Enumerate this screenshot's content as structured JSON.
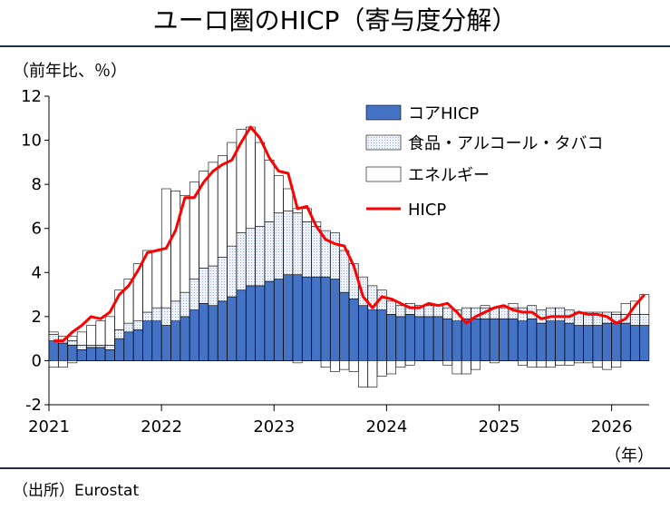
{
  "title": "ユーロ圏のHICP（寄与度分解）",
  "source": "（出所）Eurostat",
  "chart_data": {
    "type": "bar",
    "stacked": true,
    "y_unit_label": "（前年比、％）",
    "x_unit_label": "（年）",
    "ylim": [
      -2,
      12
    ],
    "y_ticks": [
      "-2",
      "0",
      "2",
      "4",
      "6",
      "8",
      "10",
      "12"
    ],
    "x_ticks": [
      "2021",
      "2022",
      "2023",
      "2024",
      "2025",
      "2026"
    ],
    "months": [
      "2021-01",
      "2021-02",
      "2021-03",
      "2021-04",
      "2021-05",
      "2021-06",
      "2021-07",
      "2021-08",
      "2021-09",
      "2021-10",
      "2021-11",
      "2021-12",
      "2022-01",
      "2022-02",
      "2022-03",
      "2022-04",
      "2022-05",
      "2022-06",
      "2022-07",
      "2022-08",
      "2022-09",
      "2022-10",
      "2022-11",
      "2022-12",
      "2023-01",
      "2023-02",
      "2023-03",
      "2023-04",
      "2023-05",
      "2023-06",
      "2023-07",
      "2023-08",
      "2023-09",
      "2023-10",
      "2023-11",
      "2023-12",
      "2024-01",
      "2024-02",
      "2024-03",
      "2024-04",
      "2024-05",
      "2024-06",
      "2024-07",
      "2024-08",
      "2024-09",
      "2024-10",
      "2024-11",
      "2024-12",
      "2025-01",
      "2025-02",
      "2025-03",
      "2025-04",
      "2025-05",
      "2025-06",
      "2025-07",
      "2025-08",
      "2025-09",
      "2025-10",
      "2025-11",
      "2025-12",
      "2026-01",
      "2026-02",
      "2026-03",
      "2026-04"
    ],
    "legend_position": "top-right",
    "series": [
      {
        "name": "コアHICP",
        "kind": "bar",
        "color": "#4472c4",
        "values": [
          0.9,
          0.8,
          0.7,
          0.5,
          0.6,
          0.6,
          0.5,
          1.0,
          1.3,
          1.4,
          1.8,
          1.8,
          1.6,
          1.8,
          2.0,
          2.3,
          2.6,
          2.5,
          2.7,
          2.9,
          3.2,
          3.4,
          3.4,
          3.6,
          3.7,
          3.9,
          3.9,
          3.8,
          3.8,
          3.8,
          3.7,
          3.1,
          2.8,
          2.5,
          2.3,
          2.3,
          2.1,
          2.0,
          2.1,
          2.0,
          2.0,
          2.0,
          1.9,
          1.8,
          1.9,
          1.9,
          1.9,
          1.9,
          1.9,
          1.9,
          1.8,
          1.9,
          1.7,
          1.8,
          1.8,
          1.7,
          1.6,
          1.6,
          1.6,
          1.7,
          1.7,
          1.7,
          1.6,
          1.6
        ]
      },
      {
        "name": "食品・アルコール・タバコ",
        "kind": "bar",
        "color": "#dce6f4",
        "values": [
          0.3,
          0.3,
          0.2,
          0.2,
          0.1,
          0.1,
          0.2,
          0.4,
          0.4,
          0.4,
          0.4,
          0.6,
          0.8,
          0.9,
          1.1,
          1.4,
          1.6,
          1.8,
          2.0,
          2.3,
          2.6,
          2.6,
          2.7,
          2.7,
          3.0,
          2.9,
          2.8,
          2.5,
          2.3,
          2.1,
          2.1,
          1.9,
          1.6,
          1.3,
          1.1,
          0.9,
          0.6,
          0.5,
          0.5,
          0.5,
          0.5,
          0.5,
          0.5,
          0.5,
          0.5,
          0.5,
          0.5,
          0.5,
          0.5,
          0.5,
          0.6,
          0.6,
          0.6,
          0.6,
          0.6,
          0.6,
          0.6,
          0.6,
          0.6,
          0.5,
          0.4,
          0.4,
          0.5,
          0.5
        ]
      },
      {
        "name": "エネルギー",
        "kind": "bar",
        "color": "#ffffff",
        "pos": [
          0.1,
          0.0,
          0.2,
          0.6,
          0.9,
          1.1,
          1.3,
          1.8,
          2.0,
          2.6,
          2.8,
          2.6,
          5.4,
          5.0,
          4.4,
          4.4,
          4.4,
          4.7,
          4.6,
          4.7,
          4.7,
          4.6,
          3.8,
          2.8,
          1.7,
          1.0,
          0.2,
          0.6,
          0.2,
          0,
          0,
          0,
          0,
          0,
          0,
          0,
          0,
          0,
          0,
          0,
          0,
          0,
          0,
          0,
          0,
          0,
          0.1,
          0,
          0,
          0.2,
          0,
          0,
          0,
          0,
          0,
          0,
          0,
          0,
          0,
          0,
          0.1,
          0.5,
          0.6,
          0.9
        ],
        "neg": [
          -0.3,
          -0.3,
          -0.1,
          0,
          0,
          0,
          0,
          0,
          0,
          0,
          0,
          0,
          0,
          0,
          0,
          0,
          0,
          0,
          0,
          0,
          0,
          0,
          0,
          0,
          0,
          0,
          -0.1,
          0,
          0,
          -0.3,
          -0.5,
          -0.4,
          -0.5,
          -1.2,
          -1.2,
          -0.7,
          -0.6,
          -0.3,
          -0.2,
          0,
          0,
          0,
          -0.2,
          -0.6,
          -0.6,
          -0.4,
          0,
          -0.1,
          0,
          0,
          -0.2,
          -0.3,
          -0.3,
          -0.3,
          -0.2,
          -0.2,
          -0.1,
          -0.1,
          -0.3,
          -0.4,
          -0.3,
          0,
          0,
          0
        ]
      },
      {
        "name": "HICP",
        "kind": "line",
        "color": "#ff0000",
        "values": [
          0.9,
          0.9,
          1.3,
          1.6,
          2.0,
          1.9,
          2.2,
          3.0,
          3.4,
          4.1,
          4.9,
          5.0,
          5.1,
          5.9,
          7.4,
          7.4,
          8.1,
          8.6,
          8.9,
          9.1,
          9.9,
          10.6,
          10.1,
          9.2,
          8.6,
          8.5,
          6.9,
          7.0,
          6.1,
          5.5,
          5.3,
          5.2,
          4.3,
          2.9,
          2.4,
          2.9,
          2.8,
          2.6,
          2.4,
          2.4,
          2.6,
          2.5,
          2.6,
          2.2,
          1.7,
          2.0,
          2.2,
          2.4,
          2.5,
          2.3,
          2.2,
          2.2,
          1.9,
          2.0,
          2.0,
          2.0,
          2.2,
          2.1,
          2.1,
          2.0,
          1.7,
          1.9,
          2.5,
          3.0
        ]
      }
    ]
  }
}
